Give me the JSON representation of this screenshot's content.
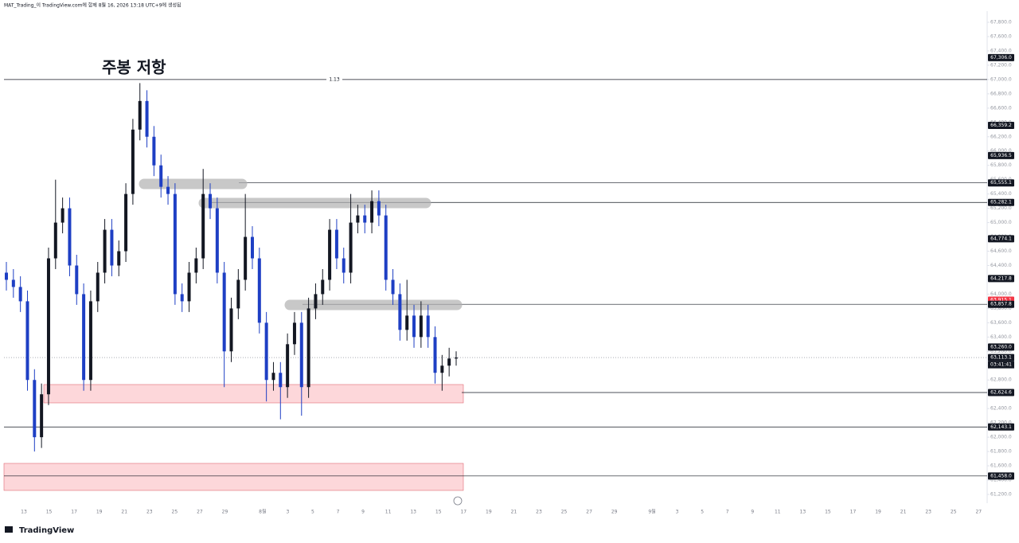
{
  "header": {
    "text": "MAT_Trading_이 TradingView.com에 함께 8월 16, 2026 13:18 UTC+9에 생성됨"
  },
  "chart": {
    "type": "candlestick",
    "ylim": [
      61200,
      67800
    ],
    "yticks": [
      {
        "value": 67800,
        "label": "67,800.0"
      },
      {
        "value": 67600,
        "label": "67,600.0"
      },
      {
        "value": 67400,
        "label": "67,400.0"
      },
      {
        "value": 67200,
        "label": "67,200.0"
      },
      {
        "value": 67000,
        "label": "67,000.0"
      },
      {
        "value": 66800,
        "label": "66,800.0"
      },
      {
        "value": 66600,
        "label": "66,600.0"
      },
      {
        "value": 66400,
        "label": "66,400.0"
      },
      {
        "value": 66200,
        "label": "66,200.0"
      },
      {
        "value": 66000,
        "label": "66,000.0"
      },
      {
        "value": 65800,
        "label": "65,800.0"
      },
      {
        "value": 65600,
        "label": "65,600.0"
      },
      {
        "value": 65400,
        "label": "65,400.0"
      },
      {
        "value": 65200,
        "label": "65,200.0"
      },
      {
        "value": 65000,
        "label": "65,000.0"
      },
      {
        "value": 64800,
        "label": "64,800.0"
      },
      {
        "value": 64600,
        "label": "64,600.0"
      },
      {
        "value": 64400,
        "label": "64,400.0"
      },
      {
        "value": 64200,
        "label": "64,200.0"
      },
      {
        "value": 64000,
        "label": "64,000.0"
      },
      {
        "value": 63800,
        "label": "63,800.0"
      },
      {
        "value": 63600,
        "label": "63,600.0"
      },
      {
        "value": 63400,
        "label": "63,400.0"
      },
      {
        "value": 63200,
        "label": "63,200.0"
      },
      {
        "value": 63000,
        "label": "63,000.0"
      },
      {
        "value": 62800,
        "label": "62,800.0"
      },
      {
        "value": 62600,
        "label": "62,600.0"
      },
      {
        "value": 62400,
        "label": "62,400.0"
      },
      {
        "value": 62200,
        "label": "62,200.0"
      },
      {
        "value": 62000,
        "label": "62,000.0"
      },
      {
        "value": 61800,
        "label": "61,800.0"
      },
      {
        "value": 61600,
        "label": "61,600.0"
      },
      {
        "value": 61400,
        "label": "61,400.0"
      },
      {
        "value": 61200,
        "label": "61,200.0"
      }
    ],
    "dates": [
      "13",
      "15",
      "17",
      "19",
      "21",
      "23",
      "25",
      "27",
      "29",
      "8월",
      "3",
      "5",
      "7",
      "9",
      "11",
      "13",
      "15",
      "17",
      "19",
      "21",
      "23",
      "25",
      "27",
      "29",
      "9월",
      "3",
      "5",
      "7",
      "9",
      "11",
      "13",
      "15",
      "17",
      "19",
      "21",
      "23",
      "25",
      "27"
    ],
    "up_color": "#131722",
    "down_color": "#1e3fc4",
    "candles": [
      [
        64300,
        64450,
        64050,
        64200
      ],
      [
        64200,
        64350,
        63950,
        64100
      ],
      [
        64100,
        64250,
        63750,
        63900
      ],
      [
        63900,
        64050,
        62650,
        62800
      ],
      [
        62800,
        62950,
        61800,
        62000
      ],
      [
        62000,
        62750,
        61850,
        62600
      ],
      [
        62600,
        64650,
        62450,
        64500
      ],
      [
        64500,
        65600,
        64350,
        65000
      ],
      [
        65000,
        65350,
        64850,
        65200
      ],
      [
        65200,
        65350,
        64250,
        64400
      ],
      [
        64400,
        64550,
        63850,
        64000
      ],
      [
        64000,
        64150,
        62650,
        62800
      ],
      [
        62800,
        64050,
        62650,
        63900
      ],
      [
        63900,
        64450,
        63750,
        64300
      ],
      [
        64300,
        65050,
        64150,
        64900
      ],
      [
        64900,
        65050,
        64250,
        64400
      ],
      [
        64400,
        64750,
        64250,
        64600
      ],
      [
        64600,
        65550,
        64450,
        65400
      ],
      [
        65400,
        66450,
        65250,
        66300
      ],
      [
        66300,
        66950,
        66150,
        66700
      ],
      [
        66700,
        66850,
        66050,
        66200
      ],
      [
        66200,
        66350,
        65650,
        65800
      ],
      [
        65800,
        65950,
        65350,
        65500
      ],
      [
        65500,
        65650,
        65250,
        65400
      ],
      [
        65400,
        65550,
        63850,
        64000
      ],
      [
        64000,
        64150,
        63750,
        63900
      ],
      [
        63900,
        64450,
        63750,
        64300
      ],
      [
        64300,
        64650,
        64150,
        64500
      ],
      [
        64500,
        65750,
        64350,
        65400
      ],
      [
        65400,
        65550,
        65050,
        65200
      ],
      [
        65200,
        65350,
        64150,
        64300
      ],
      [
        64300,
        64450,
        62700,
        63200
      ],
      [
        63200,
        63950,
        63050,
        63800
      ],
      [
        63800,
        64350,
        63650,
        64200
      ],
      [
        64200,
        65400,
        64050,
        64800
      ],
      [
        64800,
        64950,
        64350,
        64500
      ],
      [
        64500,
        64650,
        63450,
        63600
      ],
      [
        63600,
        63750,
        62500,
        62800
      ],
      [
        62800,
        63050,
        62650,
        62900
      ],
      [
        62900,
        63050,
        62250,
        62700
      ],
      [
        62700,
        63450,
        62550,
        63300
      ],
      [
        63300,
        63750,
        63150,
        63600
      ],
      [
        63600,
        63750,
        62300,
        62700
      ],
      [
        62700,
        63950,
        62550,
        63800
      ],
      [
        63800,
        64150,
        63650,
        64000
      ],
      [
        64000,
        64350,
        63850,
        64200
      ],
      [
        64200,
        65050,
        64050,
        64900
      ],
      [
        64900,
        65050,
        64350,
        64500
      ],
      [
        64500,
        64650,
        64150,
        64300
      ],
      [
        64300,
        65400,
        64150,
        65000
      ],
      [
        65000,
        65250,
        64850,
        65100
      ],
      [
        65100,
        65250,
        64850,
        65000
      ],
      [
        65000,
        65450,
        64850,
        65300
      ],
      [
        65300,
        65450,
        64950,
        65100
      ],
      [
        65100,
        65250,
        64050,
        64200
      ],
      [
        64200,
        64350,
        63850,
        64000
      ],
      [
        64000,
        64150,
        63350,
        63500
      ],
      [
        63500,
        64200,
        63350,
        63700
      ],
      [
        63700,
        63850,
        63250,
        63400
      ],
      [
        63400,
        63900,
        63250,
        63700
      ],
      [
        63700,
        63850,
        63250,
        63400
      ],
      [
        63400,
        63550,
        62750,
        62900
      ],
      [
        62900,
        63150,
        62650,
        63000
      ],
      [
        63000,
        63250,
        62850,
        63100
      ],
      [
        63100,
        63200,
        63000,
        63113.1
      ]
    ],
    "price_labels": [
      {
        "value": 67306.0,
        "label": "67,306.0",
        "color": "#131722"
      },
      {
        "value": 66359.2,
        "label": "66,359.2",
        "color": "#131722"
      },
      {
        "value": 65936.5,
        "label": "65,936.5",
        "color": "#131722"
      },
      {
        "value": 65555.1,
        "label": "65,555.1",
        "color": "#131722"
      },
      {
        "value": 65282.1,
        "label": "65,282.1",
        "color": "#131722"
      },
      {
        "value": 64774.1,
        "label": "64,774.1",
        "color": "#131722"
      },
      {
        "value": 64217.8,
        "label": "64,217.8",
        "color": "#131722"
      },
      {
        "value": 63915.1,
        "label": "63,915.1",
        "color": "#f23645"
      },
      {
        "value": 63857.8,
        "label": "63,857.8",
        "color": "#131722"
      },
      {
        "value": 63260.0,
        "label": "63,260.0",
        "color": "#131722"
      },
      {
        "value": 63113.1,
        "label": "63,113.1",
        "color": "#131722"
      },
      {
        "value": 62624.6,
        "label": "62,624.6",
        "color": "#131722"
      },
      {
        "value": 62143.1,
        "label": "62,143.1",
        "color": "#131722"
      },
      {
        "value": 61458.0,
        "label": "61,458.0",
        "color": "#131722"
      }
    ],
    "countdown": "03:41:41",
    "levels": [
      {
        "value": 67000,
        "label": "1.13"
      },
      {
        "value": 65555.1
      },
      {
        "value": 65282.1
      },
      {
        "value": 63857.8
      },
      {
        "value": 62624.6
      },
      {
        "value": 62143.1
      },
      {
        "value": 61458.0
      }
    ],
    "current_price": 63113.1,
    "zones": [
      {
        "top": 62736,
        "bottom": 62480
      },
      {
        "top": 61634,
        "bottom": 61256
      }
    ],
    "annotation": "주봉 저항"
  },
  "footer": {
    "logo": "TradingView"
  }
}
